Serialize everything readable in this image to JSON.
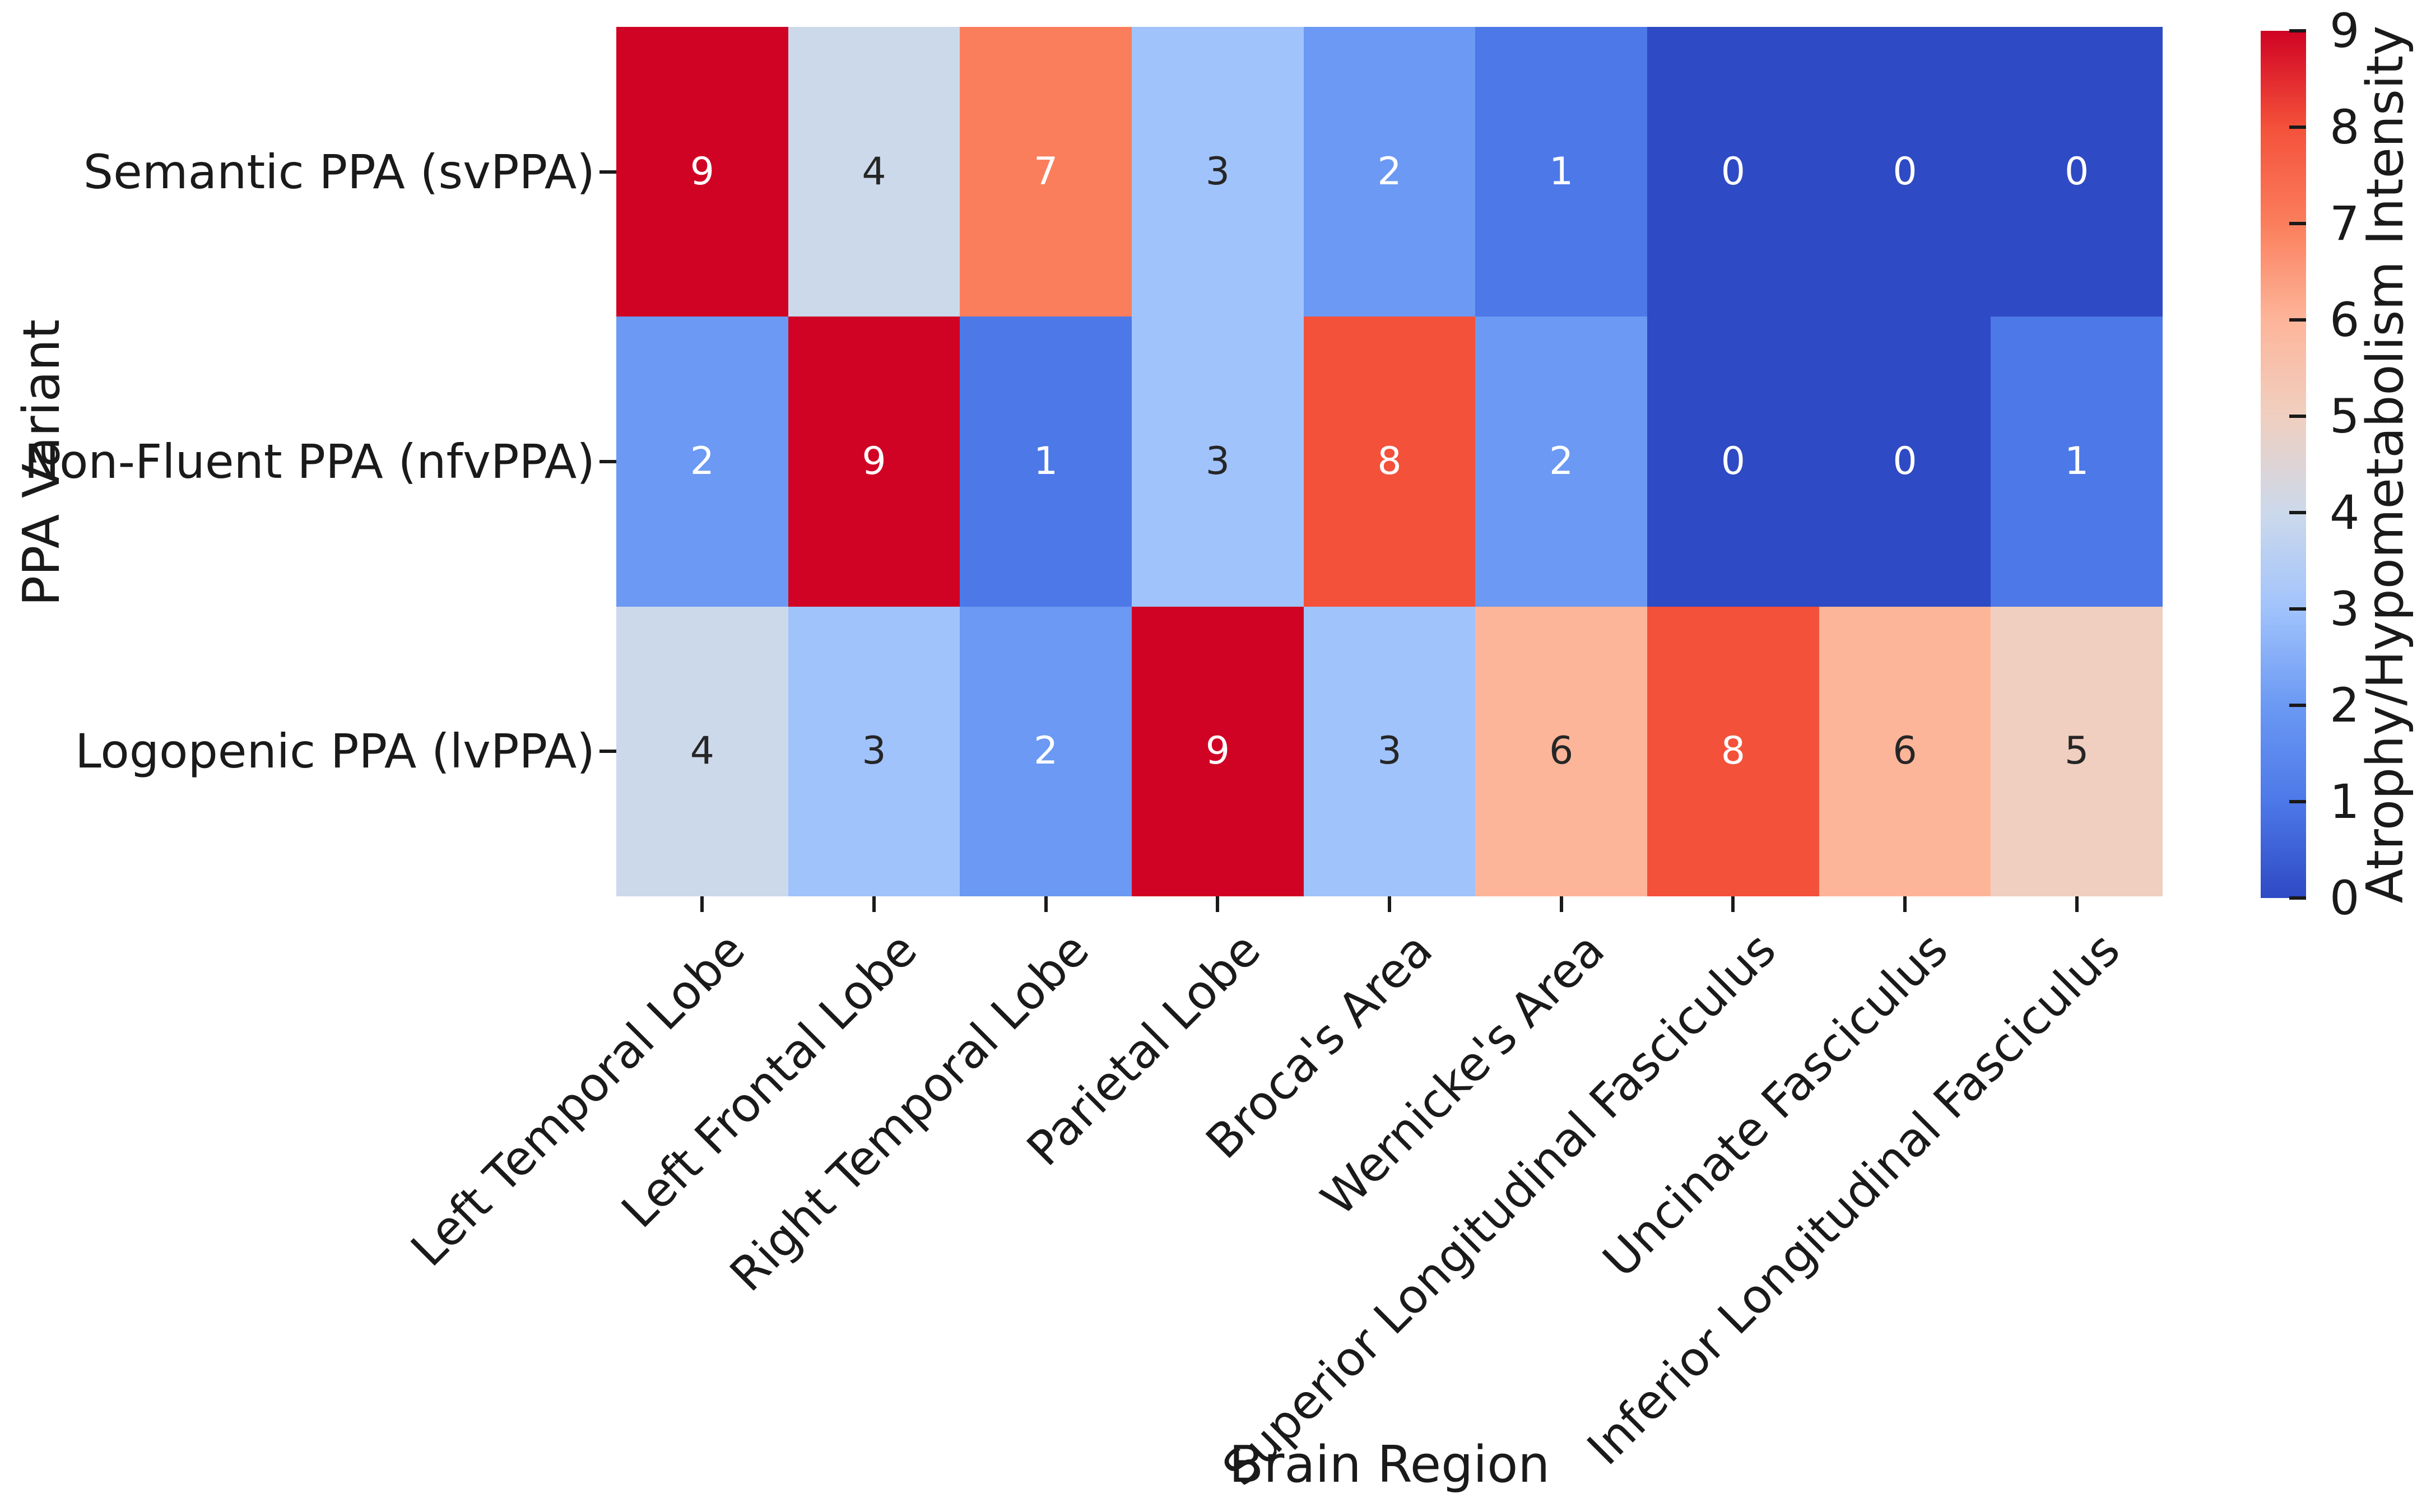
{
  "figure": {
    "xlabel": "Brain Region",
    "ylabel": "PPA Variant",
    "colorbar_label": "Atrophy/Hypometabolism Intensity"
  },
  "chart_data": {
    "type": "heatmap",
    "title": "",
    "xlabel": "Brain Region",
    "ylabel": "PPA Variant",
    "colorbar_label": "Atrophy/Hypometabolism Intensity",
    "x_categories": [
      "Left Temporal Lobe",
      "Left Frontal Lobe",
      "Right Temporal Lobe",
      "Parietal Lobe",
      "Broca's Area",
      "Wernicke's Area",
      "Superior Longitudinal Fasciculus",
      "Uncinate Fasciculus",
      "Inferior Longitudinal Fasciculus"
    ],
    "y_categories": [
      "Semantic PPA (svPPA)",
      "Non-Fluent PPA (nfvPPA)",
      "Logopenic PPA (lvPPA)"
    ],
    "values": [
      [
        9,
        4,
        7,
        3,
        2,
        1,
        0,
        0,
        0
      ],
      [
        2,
        9,
        1,
        3,
        8,
        2,
        0,
        0,
        1
      ],
      [
        4,
        3,
        2,
        9,
        3,
        6,
        8,
        6,
        5
      ]
    ],
    "vmin": 0,
    "vmax": 9,
    "colormap": "coolwarm",
    "colorbar_ticks": [
      0,
      1,
      2,
      3,
      4,
      5,
      6,
      7,
      8,
      9
    ],
    "value_colors": {
      "0": "#2e4ac4",
      "1": "#4d78e8",
      "2": "#6b99f3",
      "3": "#a1c3fc",
      "4": "#ccd9eb",
      "5": "#f0cfc0",
      "6": "#fdb59a",
      "7": "#fb7e5c",
      "8": "#f4513a",
      "9": "#d00324"
    },
    "annotation_text_dark_values": [
      3,
      4,
      5,
      6
    ],
    "annotation_colors": {
      "dark": "#262626",
      "light": "#ffffff"
    },
    "grid": false,
    "legend_position": "right-colorbar"
  }
}
